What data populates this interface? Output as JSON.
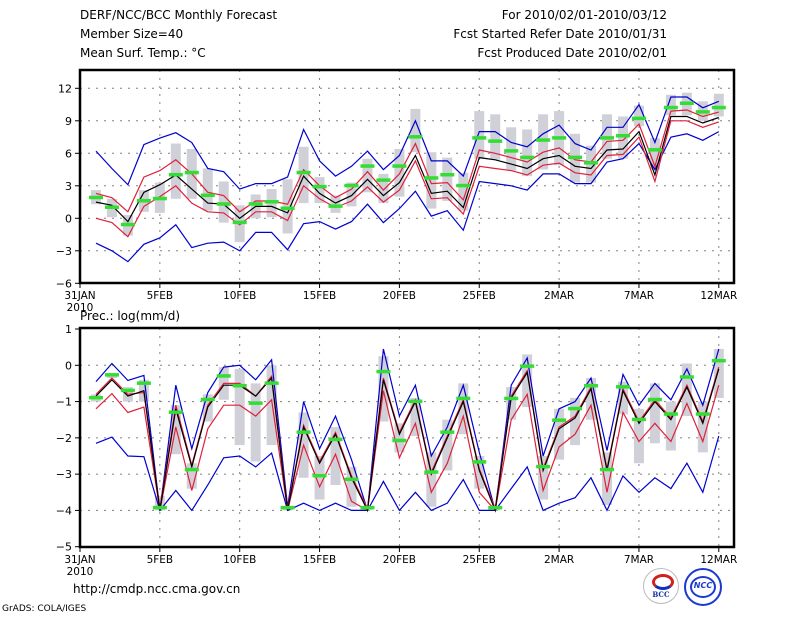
{
  "header": {
    "title": "DERF/NCC/BCC Monthly Forecast",
    "member_size": "Member Size=40",
    "variable": "Mean Surf. Temp.: °C",
    "period": "For 2010/02/01-2010/03/12",
    "start_date": "Fcst Started Refer Date 2010/01/31",
    "produced_date": "Fcst Produced Date 2010/02/01"
  },
  "footer": {
    "url": "http://cmdp.ncc.cma.gov.cn",
    "credit": "GrADS: COLA/IGES",
    "logos": [
      {
        "name": "bcc-logo",
        "text": "BCC"
      },
      {
        "name": "ncc-logo",
        "text": "NCC"
      }
    ]
  },
  "colors": {
    "mean": "#000000",
    "spread": "#e0203c",
    "extreme": "#0000d0",
    "marker": "#33dd33",
    "box": "#d0d0d8",
    "grid": "#808080"
  },
  "chart_data": [
    {
      "type": "line",
      "title": "Mean Surf. Temp.: °C",
      "xlabel": "",
      "ylabel": "°C",
      "x_tick_labels": [
        "31JAN\n2010",
        "5FEB",
        "10FEB",
        "15FEB",
        "20FEB",
        "25FEB",
        "2MAR",
        "7MAR",
        "12MAR"
      ],
      "y_ticks": [
        -6,
        -3,
        0,
        3,
        6,
        9,
        12
      ],
      "ylim": [
        -6,
        13.5
      ],
      "xlim_days": [
        0,
        40.9
      ],
      "grid": true,
      "series": [
        {
          "name": "ensemble-mean",
          "values": [
            1.5,
            1.2,
            -0.3,
            2.4,
            3.1,
            4.0,
            2.7,
            1.4,
            1.3,
            0.0,
            1.1,
            1.1,
            0.5,
            3.9,
            2.3,
            1.4,
            2.1,
            3.6,
            2.1,
            3.3,
            5.8,
            2.3,
            2.5,
            1.0,
            5.6,
            5.4,
            5.0,
            4.6,
            5.5,
            5.8,
            4.8,
            4.6,
            6.3,
            6.4,
            8.0,
            4.0,
            9.4,
            9.4,
            8.8,
            9.3
          ]
        },
        {
          "name": "mean-plus-spread",
          "values": [
            2.3,
            1.9,
            0.6,
            3.8,
            4.4,
            5.4,
            4.1,
            2.4,
            2.1,
            0.6,
            1.6,
            1.6,
            1.3,
            4.5,
            3.0,
            1.9,
            2.7,
            4.3,
            2.6,
            4.1,
            6.9,
            3.2,
            3.3,
            1.7,
            6.3,
            6.0,
            5.6,
            5.2,
            6.1,
            6.5,
            5.4,
            5.2,
            7.1,
            7.2,
            8.7,
            4.8,
            9.9,
            10.0,
            9.4,
            9.8
          ]
        },
        {
          "name": "mean-minus-spread",
          "values": [
            0.0,
            -0.4,
            -1.7,
            1.1,
            2.0,
            3.0,
            1.4,
            0.6,
            0.5,
            -0.6,
            0.6,
            0.6,
            -0.2,
            3.0,
            1.8,
            1.0,
            1.6,
            2.9,
            1.5,
            2.6,
            5.3,
            1.8,
            1.9,
            0.4,
            4.8,
            4.6,
            4.4,
            4.0,
            4.9,
            5.1,
            4.2,
            4.0,
            5.8,
            5.9,
            7.5,
            3.4,
            9.0,
            9.0,
            8.4,
            8.9
          ]
        },
        {
          "name": "ensemble-max",
          "values": [
            6.2,
            4.6,
            3.1,
            6.8,
            7.4,
            7.9,
            7.0,
            4.6,
            4.3,
            2.7,
            3.2,
            3.2,
            3.8,
            8.2,
            5.3,
            3.9,
            4.8,
            6.2,
            4.5,
            5.8,
            9.0,
            5.3,
            5.3,
            3.9,
            8.0,
            8.0,
            7.0,
            6.6,
            7.8,
            8.6,
            6.9,
            6.3,
            8.4,
            8.4,
            10.5,
            7.0,
            11.2,
            11.2,
            10.2,
            10.8
          ]
        },
        {
          "name": "ensemble-min",
          "values": [
            -2.3,
            -3.0,
            -4.0,
            -2.4,
            -1.8,
            -0.6,
            -2.7,
            -2.3,
            -2.2,
            -3.0,
            -1.3,
            -1.3,
            -2.9,
            -0.5,
            -0.3,
            -1.0,
            -0.3,
            1.3,
            -0.4,
            0.9,
            2.5,
            0.2,
            0.7,
            -1.1,
            3.4,
            3.2,
            3.0,
            2.6,
            4.1,
            4.1,
            3.2,
            3.2,
            5.2,
            5.5,
            6.9,
            4.5,
            7.5,
            7.8,
            7.2,
            8.0
          ]
        },
        {
          "name": "observed-marker",
          "values": [
            1.9,
            1.0,
            -0.6,
            1.6,
            1.8,
            4.0,
            4.2,
            2.1,
            1.3,
            -0.4,
            1.3,
            1.5,
            0.9,
            4.2,
            2.9,
            1.1,
            3.0,
            4.8,
            3.5,
            4.8,
            7.5,
            3.7,
            4.0,
            3.0,
            7.4,
            7.1,
            6.2,
            5.6,
            7.2,
            7.4,
            5.6,
            5.1,
            7.4,
            7.6,
            9.2,
            6.3,
            10.2,
            10.6,
            9.8,
            10.2
          ]
        },
        {
          "name": "box-top",
          "values": [
            2.6,
            1.8,
            0.3,
            2.6,
            3.3,
            6.9,
            6.4,
            4.6,
            3.4,
            1.2,
            2.2,
            2.7,
            3.6,
            6.6,
            3.8,
            2.1,
            3.3,
            5.5,
            4.1,
            6.4,
            10.1,
            6.1,
            5.6,
            4.2,
            9.9,
            9.6,
            8.4,
            8.2,
            9.6,
            9.9,
            7.8,
            6.7,
            9.6,
            9.4,
            10.4,
            7.4,
            11.4,
            11.6,
            10.8,
            11.5
          ]
        },
        {
          "name": "box-bottom",
          "values": [
            1.3,
            0.1,
            -1.6,
            0.6,
            0.5,
            1.8,
            1.8,
            0.7,
            -0.4,
            -2.2,
            0.0,
            0.1,
            -1.4,
            1.4,
            1.4,
            0.5,
            1.1,
            2.4,
            1.4,
            2.0,
            6.1,
            0.9,
            1.6,
            0.7,
            5.5,
            5.4,
            4.4,
            3.9,
            4.5,
            4.9,
            3.3,
            3.3,
            5.5,
            5.5,
            8.5,
            4.5,
            9.5,
            9.5,
            9.0,
            9.4
          ]
        }
      ]
    },
    {
      "type": "line",
      "title": "Prec.: log(mm/d)",
      "xlabel": "",
      "ylabel": "log(mm/d)",
      "x_tick_labels": [
        "31JAN\n2010",
        "5FEB",
        "10FEB",
        "15FEB",
        "20FEB",
        "25FEB",
        "2MAR",
        "7MAR",
        "12MAR"
      ],
      "y_ticks": [
        -5,
        -4,
        -3,
        -2,
        -1,
        0,
        1
      ],
      "ylim": [
        -5,
        1
      ],
      "xlim_days": [
        0,
        40.9
      ],
      "grid": true,
      "series": [
        {
          "name": "ensemble-mean",
          "values": [
            -0.85,
            -0.4,
            -0.85,
            -0.7,
            -4.0,
            -1.2,
            -2.8,
            -1.15,
            -0.55,
            -0.55,
            -0.85,
            -0.35,
            -4.0,
            -1.7,
            -2.7,
            -1.9,
            -3.1,
            -4.0,
            -0.4,
            -1.9,
            -1.0,
            -3.0,
            -2.0,
            -1.0,
            -2.9,
            -4.0,
            -0.9,
            -0.2,
            -2.9,
            -1.75,
            -1.45,
            -0.65,
            -2.9,
            -0.7,
            -1.6,
            -1.0,
            -1.5,
            -0.6,
            -1.6,
            -0.1
          ]
        },
        {
          "name": "mean-plus-spread",
          "values": [
            -0.8,
            -0.35,
            -0.8,
            -0.75,
            -3.95,
            -1.1,
            -2.75,
            -1.1,
            -0.5,
            -0.5,
            -0.85,
            -0.3,
            -3.95,
            -1.65,
            -2.65,
            -1.85,
            -3.05,
            -3.95,
            -0.35,
            -1.85,
            -0.95,
            -2.95,
            -1.95,
            -0.95,
            -2.85,
            -3.95,
            -0.85,
            -0.15,
            -2.85,
            -1.7,
            -1.4,
            -0.6,
            -2.85,
            -0.65,
            -1.55,
            -0.95,
            -1.45,
            -0.55,
            -1.55,
            -0.05
          ]
        },
        {
          "name": "mean-minus-spread",
          "values": [
            -1.2,
            -0.78,
            -1.3,
            -1.15,
            -4.0,
            -1.7,
            -3.45,
            -1.75,
            -1.1,
            -1.1,
            -1.4,
            -0.95,
            -4.0,
            -2.2,
            -3.35,
            -2.45,
            -3.75,
            -4.0,
            -0.7,
            -2.55,
            -1.6,
            -3.5,
            -2.7,
            -1.4,
            -3.5,
            -4.0,
            -1.5,
            -0.8,
            -3.45,
            -2.25,
            -1.9,
            -1.1,
            -3.5,
            -1.3,
            -2.1,
            -1.6,
            -2.1,
            -1.05,
            -2.1,
            -0.55
          ]
        },
        {
          "name": "ensemble-max",
          "values": [
            -0.45,
            0.05,
            -0.42,
            -0.28,
            -4.0,
            -0.55,
            -2.3,
            -0.75,
            -0.05,
            0.0,
            -0.4,
            0.15,
            -3.9,
            -1.0,
            -2.3,
            -1.4,
            -2.6,
            -4.0,
            0.45,
            -1.4,
            -0.55,
            -2.5,
            -1.7,
            -0.55,
            -2.4,
            -4.0,
            -0.55,
            0.2,
            -2.5,
            -1.2,
            -1.0,
            -0.35,
            -2.35,
            -0.25,
            -1.1,
            -0.5,
            -0.95,
            -0.1,
            -1.1,
            0.45
          ]
        },
        {
          "name": "ensemble-min",
          "values": [
            -2.15,
            -1.98,
            -2.5,
            -2.52,
            -4.0,
            -3.45,
            -4.0,
            -3.3,
            -2.55,
            -2.5,
            -2.8,
            -2.42,
            -4.0,
            -3.8,
            -4.0,
            -3.8,
            -4.0,
            -4.0,
            -3.2,
            -4.0,
            -3.5,
            -4.0,
            -3.8,
            -3.15,
            -4.0,
            -4.0,
            -3.4,
            -2.8,
            -4.0,
            -3.8,
            -3.65,
            -3.1,
            -4.0,
            -3.05,
            -3.5,
            -3.1,
            -3.4,
            -2.7,
            -3.5,
            -1.95
          ]
        },
        {
          "name": "observed-marker",
          "values": [
            -0.9,
            -0.27,
            -0.7,
            -0.5,
            -3.93,
            -1.3,
            -2.88,
            -0.95,
            -0.3,
            -0.57,
            -1.05,
            -0.5,
            -3.93,
            -1.85,
            -3.05,
            -2.05,
            -3.15,
            -3.93,
            -0.18,
            -2.08,
            -1.0,
            -2.95,
            -1.85,
            -0.92,
            -2.67,
            -3.93,
            -0.92,
            -0.03,
            -2.8,
            -1.52,
            -1.2,
            -0.57,
            -2.88,
            -0.6,
            -1.5,
            -0.95,
            -1.35,
            -0.33,
            -1.35,
            0.12
          ]
        },
        {
          "name": "box-top",
          "values": [
            -0.8,
            -0.3,
            -0.6,
            -0.4,
            -3.6,
            -1.1,
            -2.7,
            -0.8,
            -0.05,
            -0.1,
            -0.5,
            0.0,
            -3.9,
            -1.3,
            -2.5,
            -1.7,
            -2.8,
            -3.9,
            0.25,
            -1.6,
            -0.9,
            -2.4,
            -1.5,
            -0.5,
            -2.5,
            -3.9,
            -0.6,
            0.3,
            -2.5,
            -1.2,
            -0.9,
            -0.35,
            -2.4,
            -0.45,
            -1.2,
            -0.5,
            -1.0,
            0.05,
            -1.0,
            0.45
          ]
        },
        {
          "name": "box-bottom",
          "values": [
            -1.0,
            -0.35,
            -1.0,
            -1.0,
            -4.0,
            -2.45,
            -3.4,
            -1.55,
            -0.95,
            -2.2,
            -2.65,
            -2.2,
            -4.0,
            -3.1,
            -3.7,
            -3.3,
            -3.9,
            -4.0,
            -1.55,
            -2.4,
            -1.95,
            -3.9,
            -2.9,
            -1.9,
            -3.4,
            -4.0,
            -1.5,
            -1.15,
            -3.7,
            -2.6,
            -2.2,
            -1.5,
            -3.85,
            -1.35,
            -2.7,
            -2.15,
            -2.35,
            -1.4,
            -2.4,
            -0.9
          ]
        }
      ]
    }
  ]
}
